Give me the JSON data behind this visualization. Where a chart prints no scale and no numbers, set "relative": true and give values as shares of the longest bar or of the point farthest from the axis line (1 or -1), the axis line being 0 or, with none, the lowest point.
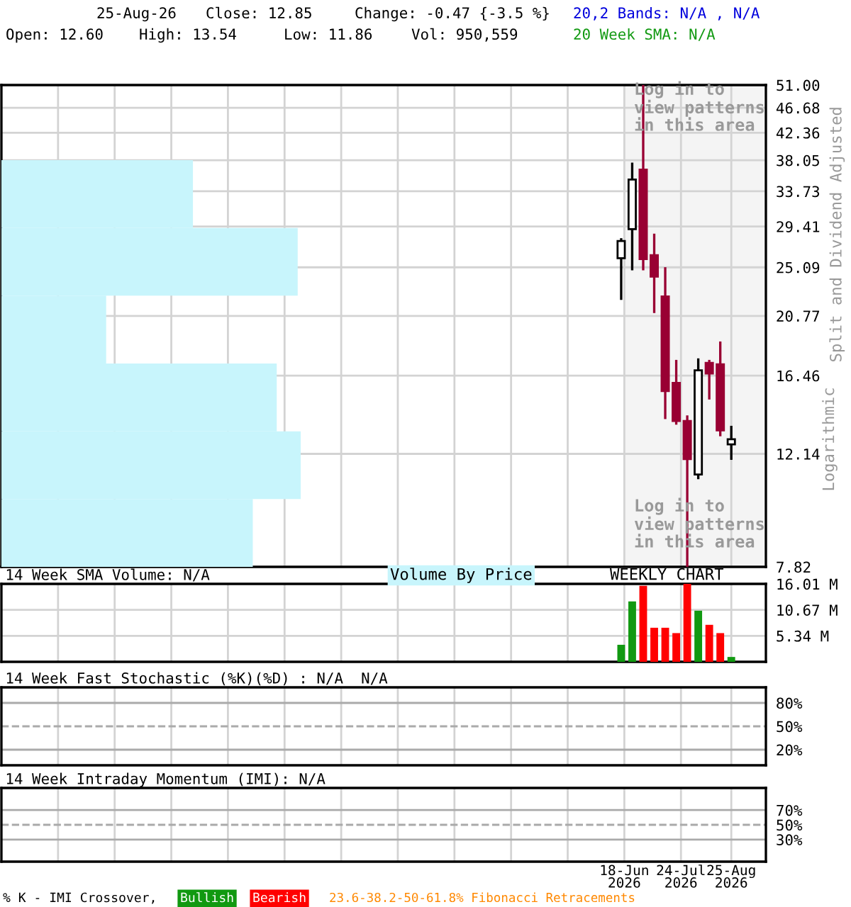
{
  "chart_data": [
    {
      "type": "candlestick",
      "ylabel": "Split and Dividend Adjusted",
      "x": [
        "2026-06-16",
        "2026-06-23",
        "2026-06-30",
        "2026-07-07",
        "2026-07-14",
        "2026-07-21",
        "2026-07-28",
        "2026-08-04",
        "2026-08-11",
        "2026-08-18",
        "2026-08-25"
      ],
      "ohlc": [
        [
          26.0,
          28.1,
          22.1,
          27.8
        ],
        [
          29.1,
          37.7,
          24.8,
          35.3
        ],
        [
          36.7,
          51.0,
          24.8,
          25.9
        ],
        [
          26.3,
          28.6,
          21.0,
          24.2
        ],
        [
          22.4,
          25.1,
          13.9,
          15.5
        ],
        [
          16.0,
          17.5,
          13.6,
          13.8
        ],
        [
          13.8,
          14.1,
          7.82,
          11.9
        ],
        [
          11.2,
          17.6,
          11.0,
          16.8
        ],
        [
          17.3,
          17.5,
          15.0,
          16.6
        ],
        [
          17.2,
          18.8,
          13.0,
          13.3
        ],
        [
          12.6,
          13.54,
          11.86,
          12.85
        ]
      ],
      "colors": [
        "#ffffff",
        "#ffffff",
        "#990033",
        "#990033",
        "#990033",
        "#990033",
        "#990033",
        "#ffffff",
        "#990033",
        "#990033",
        "#ffffff"
      ],
      "log": true,
      "ylim": [
        7.82,
        51.0
      ],
      "yticks": [
        {
          "value": 7.82,
          "label": "7.82"
        },
        {
          "value": 12.14,
          "label": "12.14"
        },
        {
          "value": 16.46,
          "label": "16.46"
        },
        {
          "value": 20.77,
          "label": "20.77"
        },
        {
          "value": 25.09,
          "label": "25.09"
        },
        {
          "value": 29.41,
          "label": "29.41"
        },
        {
          "value": 33.73,
          "label": "33.73"
        },
        {
          "value": 38.05,
          "label": "38.05"
        },
        {
          "value": 42.36,
          "label": "42.36"
        },
        {
          "value": 46.68,
          "label": "46.68"
        },
        {
          "value": 51.0,
          "label": "51.00"
        }
      ],
      "xlim": [
        "2025-05-18",
        "2026-09-16"
      ],
      "xticks": [
        {
          "value": "2025-06-23",
          "label": null
        },
        {
          "value": "2025-07-29",
          "label": null
        },
        {
          "value": "2025-09-03",
          "label": null
        },
        {
          "value": "2025-10-09",
          "label": null
        },
        {
          "value": "2025-11-14",
          "label": null
        },
        {
          "value": "2025-12-20",
          "label": null
        },
        {
          "value": "2026-01-25",
          "label": null
        },
        {
          "value": "2026-03-02",
          "label": null
        },
        {
          "value": "2026-04-07",
          "label": null
        },
        {
          "value": "2026-05-13",
          "label": null
        },
        {
          "value": "2026-06-18",
          "label": null
        },
        {
          "value": "2026-07-24",
          "label": null
        },
        {
          "value": "2026-08-25",
          "label": null
        }
      ],
      "tick_labels": "y",
      "grid": true,
      "bands": [
        {
          "axis": "x",
          "from": "2026-06-18",
          "to": "2026-09-16",
          "color": "#f4f4f4"
        }
      ],
      "annotations": [
        "25-Aug-26",
        "Close: 12.85",
        "Change: -0.47 {-3.5 %}",
        "Open: 12.60",
        "High: 13.54",
        "Low: 11.86",
        "Vol: 950,559",
        "20,2 Bands: N/A , N/A",
        "20 Week SMA: N/A",
        "Log in to\nview patterns\nin this area",
        "Log in to\nview patterns\nin this area",
        "Logarithmic"
      ]
    },
    {
      "type": "bar",
      "orientation": "horizontal",
      "relative": true,
      "categories": [
        null,
        null,
        null,
        null,
        null,
        null
      ],
      "values": [
        0.64,
        0.99,
        0.35,
        0.92,
        1,
        0.84
      ],
      "color": "#c8f5fc"
    },
    {
      "type": "bar",
      "title": "14 Week SMA Volume: N/A",
      "x": [
        "2026-06-16",
        "2026-06-23",
        "2026-06-30",
        "2026-07-07",
        "2026-07-14",
        "2026-07-21",
        "2026-07-28",
        "2026-08-04",
        "2026-08-11",
        "2026-08-18",
        "2026-08-25"
      ],
      "values": [
        3.5,
        12.4,
        15.6,
        7.0,
        7.0,
        5.9,
        16.0,
        10.5,
        7.6,
        5.9,
        1.0
      ],
      "colors": [
        "#119911",
        "#119911",
        "#ff0000",
        "#ff0000",
        "#ff0000",
        "#ff0000",
        "#ff0000",
        "#119911",
        "#ff0000",
        "#ff0000",
        "#119911"
      ],
      "ylim": [
        0,
        16.01
      ],
      "yticks": [
        {
          "value": 5.34,
          "label": "5.34 M"
        },
        {
          "value": 10.67,
          "label": "10.67 M"
        },
        {
          "value": 16.01,
          "label": "16.01 M"
        }
      ],
      "xlim": [
        "2025-05-18",
        "2026-09-16"
      ],
      "xticks": [
        {
          "value": "2025-06-23",
          "label": null
        },
        {
          "value": "2025-07-29",
          "label": null
        },
        {
          "value": "2025-09-03",
          "label": null
        },
        {
          "value": "2025-10-09",
          "label": null
        },
        {
          "value": "2025-11-14",
          "label": null
        },
        {
          "value": "2025-12-20",
          "label": null
        },
        {
          "value": "2026-01-25",
          "label": null
        },
        {
          "value": "2026-03-02",
          "label": null
        },
        {
          "value": "2026-04-07",
          "label": null
        },
        {
          "value": "2026-05-13",
          "label": null
        },
        {
          "value": "2026-06-18",
          "label": null
        },
        {
          "value": "2026-07-24",
          "label": null
        },
        {
          "value": "2026-08-25",
          "label": null
        }
      ],
      "tick_labels": "y",
      "grid": true,
      "annotations": [
        "Volume By Price",
        "WEEKLY CHART"
      ]
    },
    {
      "type": "line",
      "title": "14 Week Fast Stochastic (%K)(%D) : N/A  N/A",
      "ylim": [
        0,
        100
      ],
      "yticks": [
        {
          "value": 20,
          "label": "20%"
        },
        {
          "value": 50,
          "label": "50%"
        },
        {
          "value": 80,
          "label": "80%"
        }
      ],
      "xlim": [
        "2025-05-18",
        "2026-09-16"
      ],
      "xticks": [
        {
          "value": "2025-06-23",
          "label": null
        },
        {
          "value": "2025-07-29",
          "label": null
        },
        {
          "value": "2025-09-03",
          "label": null
        },
        {
          "value": "2025-10-09",
          "label": null
        },
        {
          "value": "2025-11-14",
          "label": null
        },
        {
          "value": "2025-12-20",
          "label": null
        },
        {
          "value": "2026-01-25",
          "label": null
        },
        {
          "value": "2026-03-02",
          "label": null
        },
        {
          "value": "2026-04-07",
          "label": null
        },
        {
          "value": "2026-05-13",
          "label": null
        },
        {
          "value": "2026-06-18",
          "label": null
        },
        {
          "value": "2026-07-24",
          "label": null
        },
        {
          "value": "2026-08-25",
          "label": null
        }
      ],
      "tick_labels": "y",
      "grid": "x",
      "ref_lines": [
        {
          "axis": "y",
          "value": 20,
          "color": "#aaaaaa",
          "line_style": "solid"
        },
        {
          "axis": "y",
          "value": 50,
          "color": "#aaaaaa",
          "line_style": "dashed"
        },
        {
          "axis": "y",
          "value": 80,
          "color": "#aaaaaa",
          "line_style": "solid"
        }
      ]
    },
    {
      "type": "line",
      "title": "14 Week Intraday Momentum (IMI): N/A",
      "ylim": [
        0,
        100
      ],
      "yticks": [
        {
          "value": 30,
          "label": "30%"
        },
        {
          "value": 50,
          "label": "50%"
        },
        {
          "value": 70,
          "label": "70%"
        }
      ],
      "xlim": [
        "2025-05-18",
        "2026-09-16"
      ],
      "xticks": [
        {
          "value": "2025-06-23",
          "label": null
        },
        {
          "value": "2025-07-29",
          "label": null
        },
        {
          "value": "2025-09-03",
          "label": null
        },
        {
          "value": "2025-10-09",
          "label": null
        },
        {
          "value": "2025-11-14",
          "label": null
        },
        {
          "value": "2025-12-20",
          "label": null
        },
        {
          "value": "2026-01-25",
          "label": null
        },
        {
          "value": "2026-03-02",
          "label": null
        },
        {
          "value": "2026-04-07",
          "label": null
        },
        {
          "value": "2026-05-13",
          "label": null
        },
        {
          "value": "2026-06-18",
          "label": "18-Jun\n2026"
        },
        {
          "value": "2026-07-24",
          "label": "24-Jul\n2026"
        },
        {
          "value": "2026-08-25",
          "label": "25-Aug\n2026"
        }
      ],
      "grid": "x",
      "ref_lines": [
        {
          "axis": "y",
          "value": 30,
          "color": "#aaaaaa",
          "line_style": "solid"
        },
        {
          "axis": "y",
          "value": 50,
          "color": "#aaaaaa",
          "line_style": "dashed"
        },
        {
          "axis": "y",
          "value": 70,
          "color": "#aaaaaa",
          "line_style": "solid"
        }
      ],
      "annotations": [
        "% K - IMI Crossover,",
        "Bullish",
        "Bearish",
        "23.6-38.2-50-61.8% Fibonacci Retracements"
      ]
    }
  ]
}
